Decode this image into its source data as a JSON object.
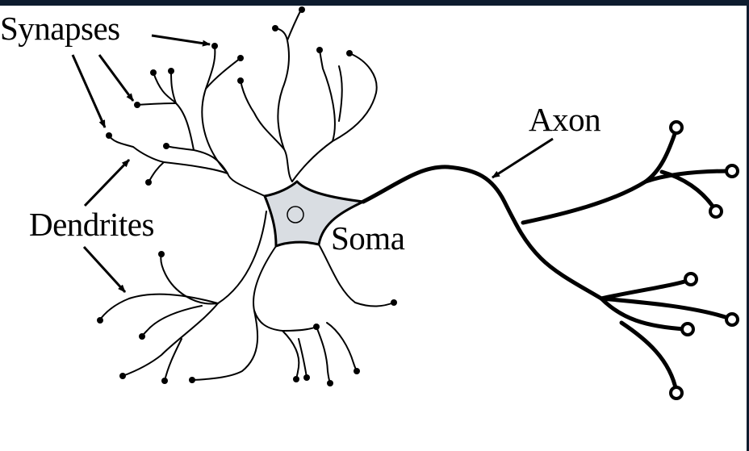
{
  "labels": {
    "synapses": "Synapses",
    "dendrites": "Dendrites",
    "soma": "Soma",
    "axon": "Axon"
  },
  "colors": {
    "soma_fill": "#d9dde2",
    "ink": "#000000",
    "frame": "#0d1b2e"
  }
}
